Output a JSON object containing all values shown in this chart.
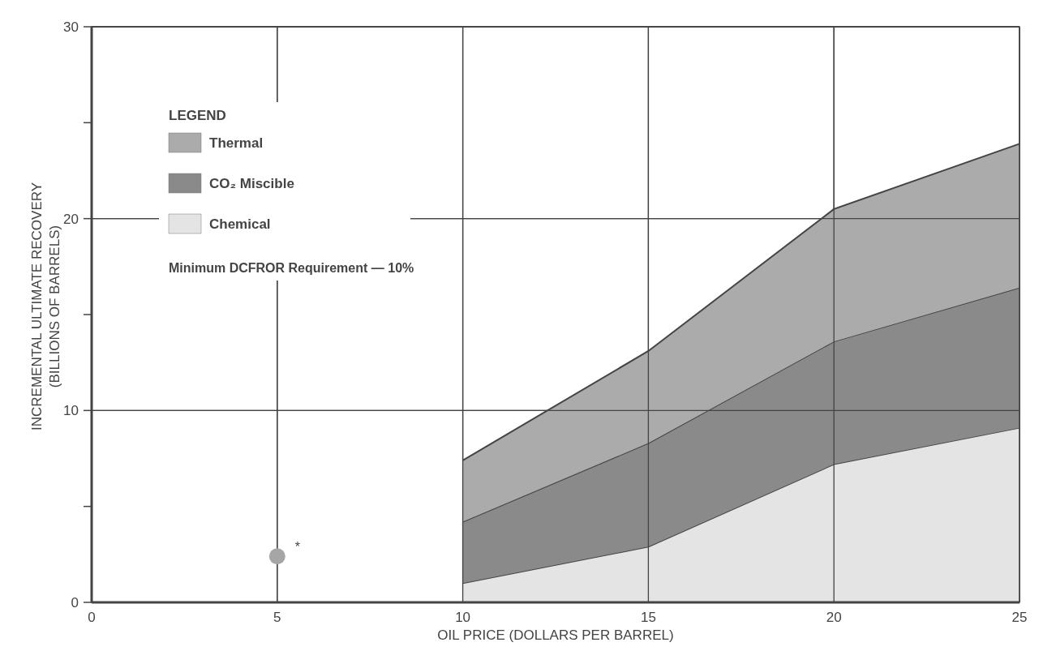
{
  "chart_data": {
    "type": "area",
    "stacked": true,
    "xlabel": "OIL PRICE (DOLLARS PER BARREL)",
    "ylabel": "INCREMENTAL ULTIMATE RECOVERY\n(BILLIONS OF BARRELS)",
    "legend_title": "LEGEND",
    "legend": "top left",
    "grid": true,
    "x": [
      10,
      15,
      20,
      25
    ],
    "series": [
      {
        "name": "Chemical",
        "color": "#e4e4e4",
        "values": [
          1.0,
          2.9,
          7.2,
          9.1
        ]
      },
      {
        "name": "CO₂ Miscible",
        "color": "#8a8a8a",
        "values": [
          3.2,
          5.4,
          6.4,
          7.3
        ]
      },
      {
        "name": "Thermal",
        "color": "#ababab",
        "values": [
          3.2,
          4.8,
          6.9,
          7.5
        ]
      },
      {
        "type": "scatter",
        "x": [
          5
        ],
        "values": [
          2.4
        ],
        "color": "#a6a6a6",
        "marker": "circle"
      }
    ],
    "xlim": [
      0,
      25
    ],
    "xticks": [
      0,
      5,
      10,
      15,
      20,
      25
    ],
    "ylim": [
      0,
      30
    ],
    "yticks": [
      0,
      {
        "value": 5,
        "label": null
      },
      10,
      {
        "value": 15,
        "label": null
      },
      20,
      {
        "value": 25,
        "label": null
      },
      30
    ],
    "annotations": [
      "Minimum DCFROR Requirement — 10%",
      {
        "text": "*",
        "x": 5,
        "y": 2.4
      }
    ]
  }
}
